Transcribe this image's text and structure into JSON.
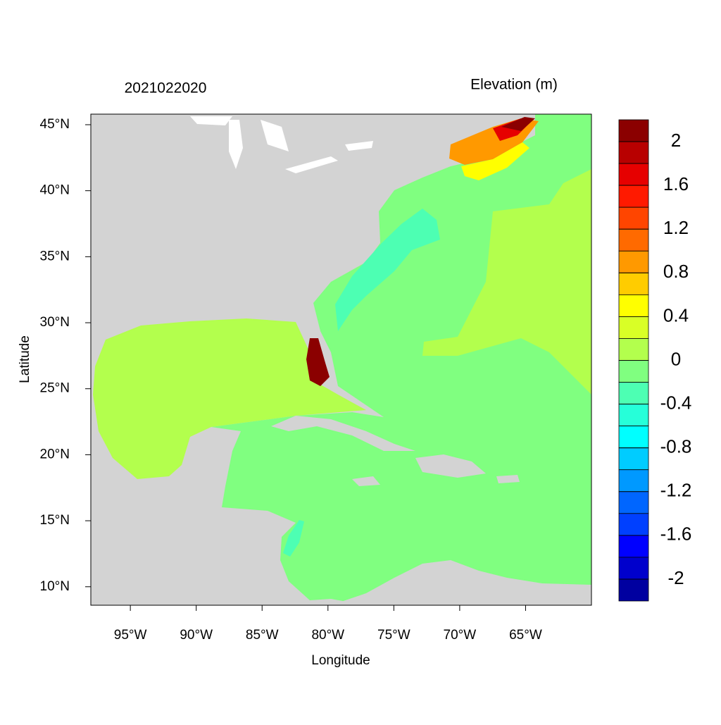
{
  "chart_data": {
    "type": "contour-map",
    "title": "2021022020",
    "colorbar_title": "Elevation (m)",
    "xlabel": "Longitude",
    "ylabel": "Latitude",
    "xlim": [
      -98,
      -60
    ],
    "ylim": [
      8.6,
      45.8
    ],
    "xticks": [
      {
        "value": -95,
        "label": "95°W"
      },
      {
        "value": -90,
        "label": "90°W"
      },
      {
        "value": -85,
        "label": "85°W"
      },
      {
        "value": -80,
        "label": "80°W"
      },
      {
        "value": -75,
        "label": "75°W"
      },
      {
        "value": -70,
        "label": "70°W"
      },
      {
        "value": -65,
        "label": "65°W"
      }
    ],
    "yticks": [
      {
        "value": 10,
        "label": "10°N"
      },
      {
        "value": 15,
        "label": "15°N"
      },
      {
        "value": 20,
        "label": "20°N"
      },
      {
        "value": 25,
        "label": "25°N"
      },
      {
        "value": 30,
        "label": "30°N"
      },
      {
        "value": 35,
        "label": "35°N"
      },
      {
        "value": 40,
        "label": "40°N"
      },
      {
        "value": 45,
        "label": "45°N"
      }
    ],
    "colorbar_lim": [
      -2.2,
      2.2
    ],
    "colorbar_ticks": [
      2,
      1.6,
      1.2,
      0.8,
      0.4,
      0,
      -0.4,
      -0.8,
      -1.2,
      -1.6,
      -2
    ],
    "colors": [
      "#8b0000",
      "#b80000",
      "#e60000",
      "#ff1a00",
      "#ff4500",
      "#ff6a00",
      "#ff9900",
      "#ffcc00",
      "#ffff00",
      "#d9ff26",
      "#b3ff4d",
      "#80ff80",
      "#4dffb3",
      "#26ffd9",
      "#00ffff",
      "#00ccff",
      "#0099ff",
      "#0066ff",
      "#0040ff",
      "#0000ff",
      "#0000cc",
      "#0000a0"
    ]
  }
}
